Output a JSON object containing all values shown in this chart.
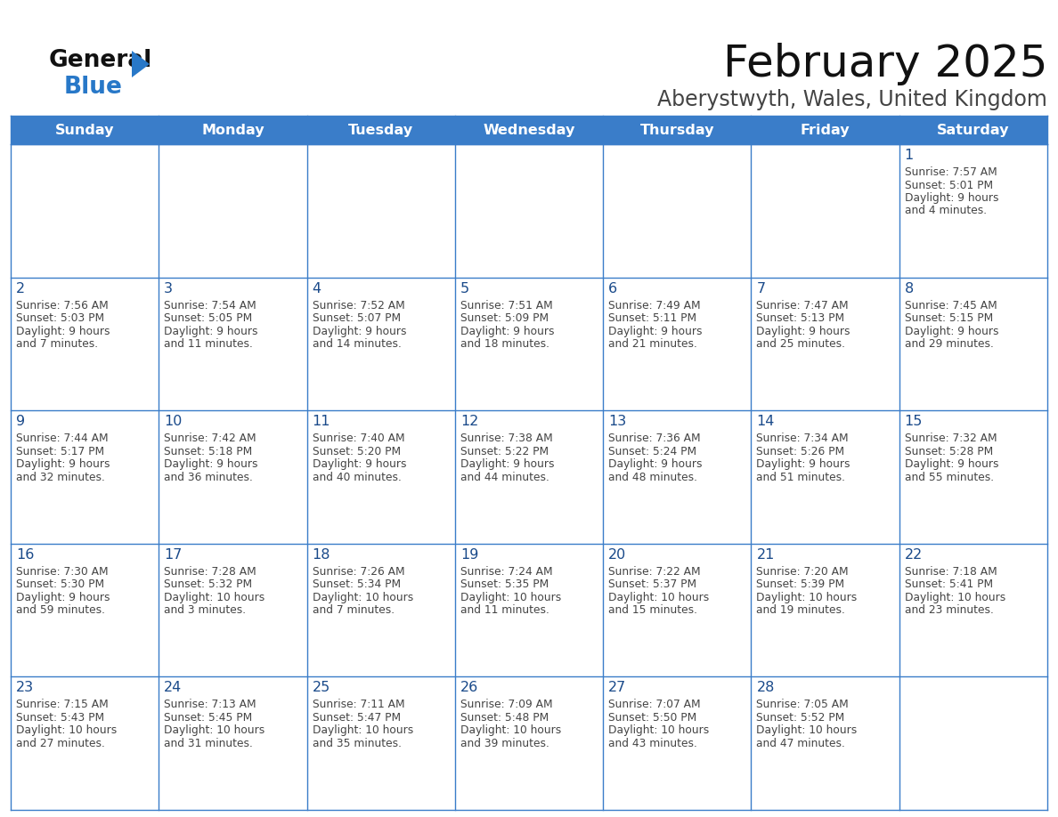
{
  "title": "February 2025",
  "subtitle": "Aberystwyth, Wales, United Kingdom",
  "days_of_week": [
    "Sunday",
    "Monday",
    "Tuesday",
    "Wednesday",
    "Thursday",
    "Friday",
    "Saturday"
  ],
  "header_bg": "#3a7dc9",
  "header_text": "#ffffff",
  "border_color": "#3a7dc9",
  "day_num_color": "#1a4a8a",
  "cell_text_color": "#444444",
  "title_color": "#111111",
  "subtitle_color": "#444444",
  "logo_general_color": "#111111",
  "logo_blue_color": "#2878c8",
  "calendar_data": [
    [
      null,
      null,
      null,
      null,
      null,
      null,
      {
        "day": 1,
        "sunrise": "7:57 AM",
        "sunset": "5:01 PM",
        "daylight": "9 hours and 4 minutes."
      }
    ],
    [
      {
        "day": 2,
        "sunrise": "7:56 AM",
        "sunset": "5:03 PM",
        "daylight": "9 hours and 7 minutes."
      },
      {
        "day": 3,
        "sunrise": "7:54 AM",
        "sunset": "5:05 PM",
        "daylight": "9 hours and 11 minutes."
      },
      {
        "day": 4,
        "sunrise": "7:52 AM",
        "sunset": "5:07 PM",
        "daylight": "9 hours and 14 minutes."
      },
      {
        "day": 5,
        "sunrise": "7:51 AM",
        "sunset": "5:09 PM",
        "daylight": "9 hours and 18 minutes."
      },
      {
        "day": 6,
        "sunrise": "7:49 AM",
        "sunset": "5:11 PM",
        "daylight": "9 hours and 21 minutes."
      },
      {
        "day": 7,
        "sunrise": "7:47 AM",
        "sunset": "5:13 PM",
        "daylight": "9 hours and 25 minutes."
      },
      {
        "day": 8,
        "sunrise": "7:45 AM",
        "sunset": "5:15 PM",
        "daylight": "9 hours and 29 minutes."
      }
    ],
    [
      {
        "day": 9,
        "sunrise": "7:44 AM",
        "sunset": "5:17 PM",
        "daylight": "9 hours and 32 minutes."
      },
      {
        "day": 10,
        "sunrise": "7:42 AM",
        "sunset": "5:18 PM",
        "daylight": "9 hours and 36 minutes."
      },
      {
        "day": 11,
        "sunrise": "7:40 AM",
        "sunset": "5:20 PM",
        "daylight": "9 hours and 40 minutes."
      },
      {
        "day": 12,
        "sunrise": "7:38 AM",
        "sunset": "5:22 PM",
        "daylight": "9 hours and 44 minutes."
      },
      {
        "day": 13,
        "sunrise": "7:36 AM",
        "sunset": "5:24 PM",
        "daylight": "9 hours and 48 minutes."
      },
      {
        "day": 14,
        "sunrise": "7:34 AM",
        "sunset": "5:26 PM",
        "daylight": "9 hours and 51 minutes."
      },
      {
        "day": 15,
        "sunrise": "7:32 AM",
        "sunset": "5:28 PM",
        "daylight": "9 hours and 55 minutes."
      }
    ],
    [
      {
        "day": 16,
        "sunrise": "7:30 AM",
        "sunset": "5:30 PM",
        "daylight": "9 hours and 59 minutes."
      },
      {
        "day": 17,
        "sunrise": "7:28 AM",
        "sunset": "5:32 PM",
        "daylight": "10 hours and 3 minutes."
      },
      {
        "day": 18,
        "sunrise": "7:26 AM",
        "sunset": "5:34 PM",
        "daylight": "10 hours and 7 minutes."
      },
      {
        "day": 19,
        "sunrise": "7:24 AM",
        "sunset": "5:35 PM",
        "daylight": "10 hours and 11 minutes."
      },
      {
        "day": 20,
        "sunrise": "7:22 AM",
        "sunset": "5:37 PM",
        "daylight": "10 hours and 15 minutes."
      },
      {
        "day": 21,
        "sunrise": "7:20 AM",
        "sunset": "5:39 PM",
        "daylight": "10 hours and 19 minutes."
      },
      {
        "day": 22,
        "sunrise": "7:18 AM",
        "sunset": "5:41 PM",
        "daylight": "10 hours and 23 minutes."
      }
    ],
    [
      {
        "day": 23,
        "sunrise": "7:15 AM",
        "sunset": "5:43 PM",
        "daylight": "10 hours and 27 minutes."
      },
      {
        "day": 24,
        "sunrise": "7:13 AM",
        "sunset": "5:45 PM",
        "daylight": "10 hours and 31 minutes."
      },
      {
        "day": 25,
        "sunrise": "7:11 AM",
        "sunset": "5:47 PM",
        "daylight": "10 hours and 35 minutes."
      },
      {
        "day": 26,
        "sunrise": "7:09 AM",
        "sunset": "5:48 PM",
        "daylight": "10 hours and 39 minutes."
      },
      {
        "day": 27,
        "sunrise": "7:07 AM",
        "sunset": "5:50 PM",
        "daylight": "10 hours and 43 minutes."
      },
      {
        "day": 28,
        "sunrise": "7:05 AM",
        "sunset": "5:52 PM",
        "daylight": "10 hours and 47 minutes."
      },
      null
    ]
  ],
  "figsize": [
    11.88,
    9.18
  ],
  "dpi": 100
}
